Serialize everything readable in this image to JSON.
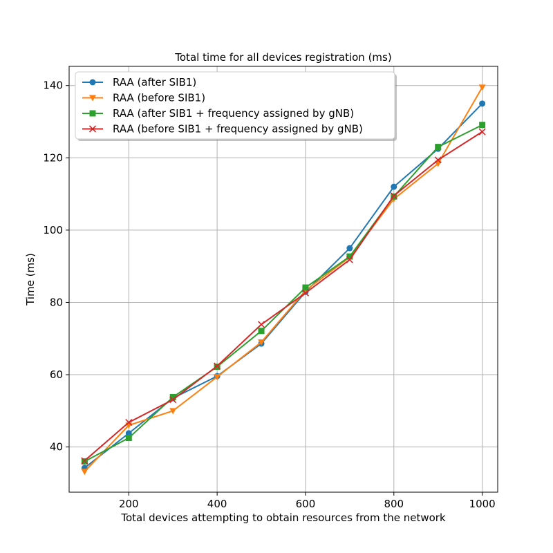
{
  "chart_data": {
    "type": "line",
    "title": "Total time for all devices registration (ms)",
    "xlabel": "Total devices attempting to obtain resources from the network",
    "ylabel": "Time (ms)",
    "x": [
      100,
      200,
      300,
      400,
      500,
      600,
      700,
      800,
      900,
      1000
    ],
    "xlim": [
      65,
      1035
    ],
    "ylim": [
      27.5,
      145.3
    ],
    "xticks": [
      200,
      400,
      600,
      800,
      1000
    ],
    "yticks": [
      40,
      60,
      80,
      100,
      120,
      140
    ],
    "grid": true,
    "legend_position": "top-left",
    "series": [
      {
        "name": "RAA (after SIB1)",
        "color": "#1f77b4",
        "marker": "circle",
        "values": [
          34.2,
          43.8,
          53.5,
          59.6,
          68.6,
          82.9,
          95.0,
          112.0,
          122.5,
          135.0
        ]
      },
      {
        "name": "RAA (before SIB1)",
        "color": "#ff7f0e",
        "marker": "triangle-down",
        "values": [
          33.2,
          46.0,
          50.0,
          59.4,
          69.0,
          83.3,
          92.5,
          108.6,
          118.4,
          139.5
        ]
      },
      {
        "name": "RAA (after SIB1 + frequency assigned by gNB)",
        "color": "#2ca02c",
        "marker": "square",
        "values": [
          36.0,
          42.5,
          53.8,
          62.2,
          72.1,
          84.1,
          92.7,
          109.3,
          123.0,
          129.1
        ]
      },
      {
        "name": "RAA (before SIB1 + frequency assigned by gNB)",
        "color": "#d62728",
        "marker": "x",
        "values": [
          36.2,
          46.8,
          53.1,
          62.4,
          73.9,
          82.6,
          91.8,
          109.5,
          119.4,
          127.2
        ]
      }
    ]
  }
}
